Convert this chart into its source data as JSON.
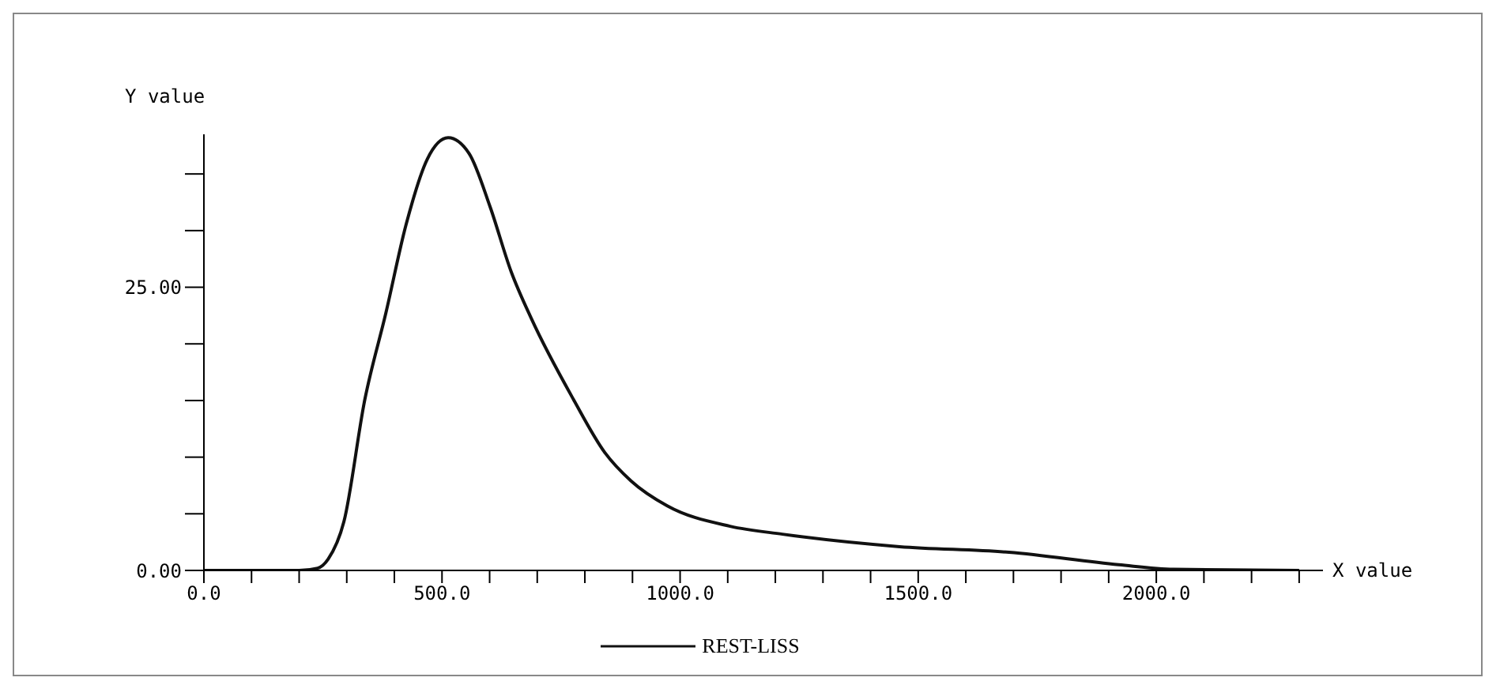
{
  "chart_data": {
    "type": "line",
    "xlabel": "X value",
    "ylabel": "Y value",
    "x": [
      0,
      100,
      200,
      239,
      261,
      294,
      338,
      382,
      425,
      469,
      513,
      557,
      601,
      645,
      688,
      776,
      842,
      897,
      973,
      1105,
      1215,
      1461,
      1691,
      1921,
      2036,
      2300
    ],
    "series": [
      {
        "name": "REST-LISS",
        "color": "#111111",
        "values": [
          0,
          0,
          0,
          0.2,
          1.0,
          4.3,
          15.1,
          22.7,
          30.6,
          36.3,
          38.2,
          36.8,
          32.1,
          26.4,
          22.2,
          15.1,
          10.4,
          7.9,
          5.7,
          3.9,
          3.2,
          2.1,
          1.6,
          0.5,
          0.1,
          0
        ]
      }
    ],
    "xlim": [
      0,
      2350
    ],
    "xticks": [
      {
        "value": 0,
        "label": "0.0"
      },
      {
        "value": 100,
        "label": null
      },
      {
        "value": 200,
        "label": null
      },
      {
        "value": 300,
        "label": null
      },
      {
        "value": 400,
        "label": null
      },
      {
        "value": 500,
        "label": "500.0"
      },
      {
        "value": 600,
        "label": null
      },
      {
        "value": 700,
        "label": null
      },
      {
        "value": 800,
        "label": null
      },
      {
        "value": 900,
        "label": null
      },
      {
        "value": 1000,
        "label": "1000.0"
      },
      {
        "value": 1100,
        "label": null
      },
      {
        "value": 1200,
        "label": null
      },
      {
        "value": 1300,
        "label": null
      },
      {
        "value": 1400,
        "label": null
      },
      {
        "value": 1500,
        "label": "1500.0"
      },
      {
        "value": 1600,
        "label": null
      },
      {
        "value": 1700,
        "label": null
      },
      {
        "value": 1800,
        "label": null
      },
      {
        "value": 1900,
        "label": null
      },
      {
        "value": 2000,
        "label": "2000.0"
      },
      {
        "value": 2100,
        "label": null
      },
      {
        "value": 2200,
        "label": null
      },
      {
        "value": 2300,
        "label": null
      }
    ],
    "ylim": [
      0,
      38.5
    ],
    "yticks": [
      {
        "value": 0,
        "label": "0.00"
      },
      {
        "value": 5,
        "label": null
      },
      {
        "value": 10,
        "label": null
      },
      {
        "value": 15,
        "label": null
      },
      {
        "value": 20,
        "label": null
      },
      {
        "value": 25,
        "label": "25.00"
      },
      {
        "value": 30,
        "label": null
      },
      {
        "value": 35,
        "label": null
      }
    ],
    "grid": false,
    "legend": "bottom",
    "marker": "none",
    "line_style": "solid"
  }
}
